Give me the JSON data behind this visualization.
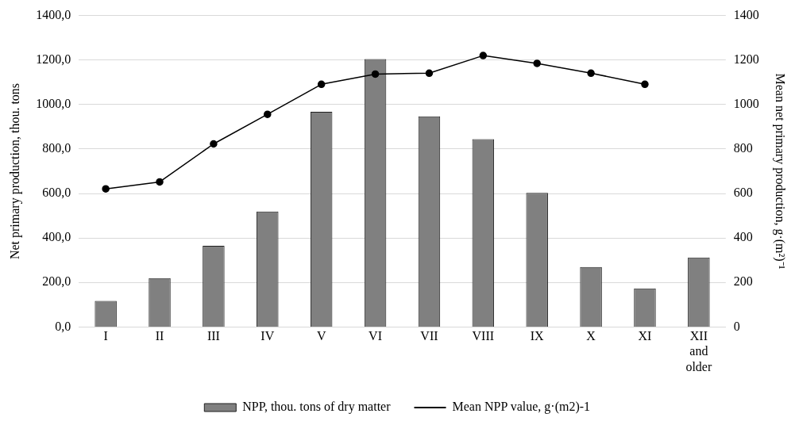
{
  "chart_data": {
    "type": "bar",
    "categories": [
      "I",
      "II",
      "III",
      "IV",
      "V",
      "VI",
      "VII",
      "VIII",
      "IX",
      "X",
      "XI",
      "XII and older"
    ],
    "series": [
      {
        "name": "NPP, thou. tons of dry matter",
        "color": "#808080",
        "values": [
          117,
          220,
          365,
          519,
          967,
          1204,
          947,
          844,
          603,
          270,
          173,
          312
        ]
      },
      {
        "name": "Mean NPP value, g·(m2)-1",
        "type": "line",
        "axis": "y2",
        "color": "#000000",
        "values": [
          621,
          652,
          823,
          956,
          1091,
          1137,
          1141,
          1220,
          1185,
          1141,
          1091,
          null
        ]
      }
    ],
    "ylabel": "Net primary production, thou. tons",
    "y2label": "Mean net primary production, g·(m²)⁻¹",
    "ylim": [
      0,
      1400
    ],
    "yticks": [
      {
        "value": 0,
        "label": "0,0"
      },
      {
        "value": 200,
        "label": "200,0"
      },
      {
        "value": 400,
        "label": "400,0"
      },
      {
        "value": 600,
        "label": "600,0"
      },
      {
        "value": 800,
        "label": "800,0"
      },
      {
        "value": 1000,
        "label": "1000,0"
      },
      {
        "value": 1200,
        "label": "1200,0"
      },
      {
        "value": 1400,
        "label": "1400,0"
      }
    ],
    "y2lim": [
      0,
      1400
    ],
    "y2ticks": [
      0,
      200,
      400,
      600,
      800,
      1000,
      1200,
      1400
    ],
    "grid": "y",
    "legend": "bottom",
    "marker": "circle",
    "line_style": "solid"
  }
}
